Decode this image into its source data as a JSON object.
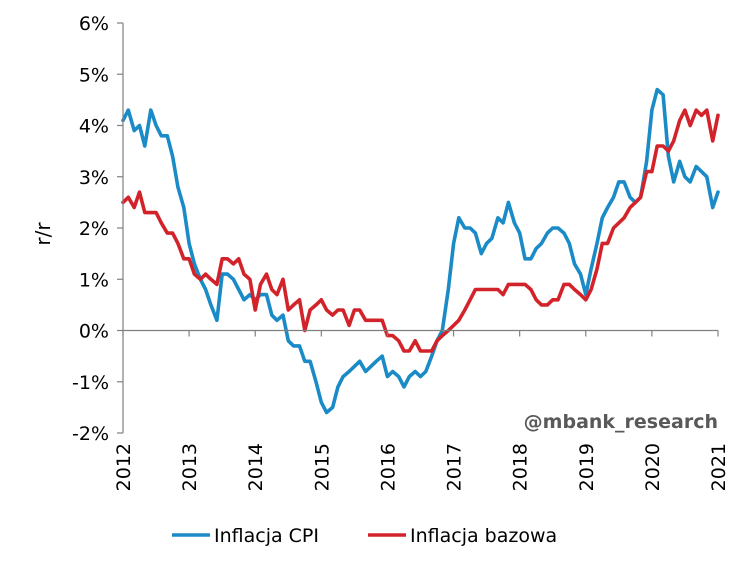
{
  "chart_data": {
    "type": "line",
    "ylabel": "r/r",
    "xlabel": "",
    "ylim": [
      -2,
      6
    ],
    "xlim": [
      2012,
      2021
    ],
    "y_ticks": [
      -2,
      -1,
      0,
      1,
      2,
      3,
      4,
      5,
      6
    ],
    "y_tick_labels": [
      "-2%",
      "-1%",
      "0%",
      "1%",
      "2%",
      "3%",
      "4%",
      "5%",
      "6%"
    ],
    "x_ticks": [
      2012,
      2013,
      2014,
      2015,
      2016,
      2017,
      2018,
      2019,
      2020,
      2021
    ],
    "x_tick_labels": [
      "2012",
      "2013",
      "2014",
      "2015",
      "2016",
      "2017",
      "2018",
      "2019",
      "2020",
      "2021"
    ],
    "grid": false,
    "legend_position": "bottom",
    "watermark": "@mbank_research",
    "series": [
      {
        "name": "Inflacja CPI",
        "color": "#1a8bc6",
        "points": [
          [
            2012.0,
            4.1
          ],
          [
            2012.08,
            4.3
          ],
          [
            2012.17,
            3.9
          ],
          [
            2012.25,
            4.0
          ],
          [
            2012.33,
            3.6
          ],
          [
            2012.42,
            4.3
          ],
          [
            2012.5,
            4.0
          ],
          [
            2012.58,
            3.8
          ],
          [
            2012.67,
            3.8
          ],
          [
            2012.75,
            3.4
          ],
          [
            2012.83,
            2.8
          ],
          [
            2012.92,
            2.4
          ],
          [
            2013.0,
            1.7
          ],
          [
            2013.08,
            1.3
          ],
          [
            2013.17,
            1.0
          ],
          [
            2013.25,
            0.8
          ],
          [
            2013.33,
            0.5
          ],
          [
            2013.42,
            0.2
          ],
          [
            2013.5,
            1.1
          ],
          [
            2013.58,
            1.1
          ],
          [
            2013.67,
            1.0
          ],
          [
            2013.75,
            0.8
          ],
          [
            2013.83,
            0.6
          ],
          [
            2013.92,
            0.7
          ],
          [
            2014.0,
            0.6
          ],
          [
            2014.08,
            0.7
          ],
          [
            2014.17,
            0.7
          ],
          [
            2014.25,
            0.3
          ],
          [
            2014.33,
            0.2
          ],
          [
            2014.42,
            0.3
          ],
          [
            2014.5,
            -0.2
          ],
          [
            2014.58,
            -0.3
          ],
          [
            2014.67,
            -0.3
          ],
          [
            2014.75,
            -0.6
          ],
          [
            2014.83,
            -0.6
          ],
          [
            2014.92,
            -1.0
          ],
          [
            2015.0,
            -1.4
          ],
          [
            2015.08,
            -1.6
          ],
          [
            2015.17,
            -1.5
          ],
          [
            2015.25,
            -1.1
          ],
          [
            2015.33,
            -0.9
          ],
          [
            2015.42,
            -0.8
          ],
          [
            2015.5,
            -0.7
          ],
          [
            2015.58,
            -0.6
          ],
          [
            2015.67,
            -0.8
          ],
          [
            2015.75,
            -0.7
          ],
          [
            2015.83,
            -0.6
          ],
          [
            2015.92,
            -0.5
          ],
          [
            2016.0,
            -0.9
          ],
          [
            2016.08,
            -0.8
          ],
          [
            2016.17,
            -0.9
          ],
          [
            2016.25,
            -1.1
          ],
          [
            2016.33,
            -0.9
          ],
          [
            2016.42,
            -0.8
          ],
          [
            2016.5,
            -0.9
          ],
          [
            2016.58,
            -0.8
          ],
          [
            2016.67,
            -0.5
          ],
          [
            2016.75,
            -0.2
          ],
          [
            2016.83,
            0.0
          ],
          [
            2016.92,
            0.8
          ],
          [
            2017.0,
            1.7
          ],
          [
            2017.08,
            2.2
          ],
          [
            2017.17,
            2.0
          ],
          [
            2017.25,
            2.0
          ],
          [
            2017.33,
            1.9
          ],
          [
            2017.42,
            1.5
          ],
          [
            2017.5,
            1.7
          ],
          [
            2017.58,
            1.8
          ],
          [
            2017.67,
            2.2
          ],
          [
            2017.75,
            2.1
          ],
          [
            2017.83,
            2.5
          ],
          [
            2017.92,
            2.1
          ],
          [
            2018.0,
            1.9
          ],
          [
            2018.08,
            1.4
          ],
          [
            2018.17,
            1.4
          ],
          [
            2018.25,
            1.6
          ],
          [
            2018.33,
            1.7
          ],
          [
            2018.42,
            1.9
          ],
          [
            2018.5,
            2.0
          ],
          [
            2018.58,
            2.0
          ],
          [
            2018.67,
            1.9
          ],
          [
            2018.75,
            1.7
          ],
          [
            2018.83,
            1.3
          ],
          [
            2018.92,
            1.1
          ],
          [
            2019.0,
            0.7
          ],
          [
            2019.08,
            1.2
          ],
          [
            2019.17,
            1.7
          ],
          [
            2019.25,
            2.2
          ],
          [
            2019.33,
            2.4
          ],
          [
            2019.42,
            2.6
          ],
          [
            2019.5,
            2.9
          ],
          [
            2019.58,
            2.9
          ],
          [
            2019.67,
            2.6
          ],
          [
            2019.75,
            2.5
          ],
          [
            2019.83,
            2.6
          ],
          [
            2019.92,
            3.3
          ],
          [
            2020.0,
            4.3
          ],
          [
            2020.08,
            4.7
          ],
          [
            2020.17,
            4.6
          ],
          [
            2020.25,
            3.4
          ],
          [
            2020.33,
            2.9
          ],
          [
            2020.42,
            3.3
          ],
          [
            2020.5,
            3.0
          ],
          [
            2020.58,
            2.9
          ],
          [
            2020.67,
            3.2
          ],
          [
            2020.75,
            3.1
          ],
          [
            2020.83,
            3.0
          ],
          [
            2020.92,
            2.4
          ],
          [
            2021.0,
            2.7
          ]
        ]
      },
      {
        "name": "Inflacja bazowa",
        "color": "#d3232a",
        "points": [
          [
            2012.0,
            2.5
          ],
          [
            2012.08,
            2.6
          ],
          [
            2012.17,
            2.4
          ],
          [
            2012.25,
            2.7
          ],
          [
            2012.33,
            2.3
          ],
          [
            2012.42,
            2.3
          ],
          [
            2012.5,
            2.3
          ],
          [
            2012.58,
            2.1
          ],
          [
            2012.67,
            1.9
          ],
          [
            2012.75,
            1.9
          ],
          [
            2012.83,
            1.7
          ],
          [
            2012.92,
            1.4
          ],
          [
            2013.0,
            1.4
          ],
          [
            2013.08,
            1.1
          ],
          [
            2013.17,
            1.0
          ],
          [
            2013.25,
            1.1
          ],
          [
            2013.33,
            1.0
          ],
          [
            2013.42,
            0.9
          ],
          [
            2013.5,
            1.4
          ],
          [
            2013.58,
            1.4
          ],
          [
            2013.67,
            1.3
          ],
          [
            2013.75,
            1.4
          ],
          [
            2013.83,
            1.1
          ],
          [
            2013.92,
            1.0
          ],
          [
            2014.0,
            0.4
          ],
          [
            2014.08,
            0.9
          ],
          [
            2014.17,
            1.1
          ],
          [
            2014.25,
            0.8
          ],
          [
            2014.33,
            0.7
          ],
          [
            2014.42,
            1.0
          ],
          [
            2014.5,
            0.4
          ],
          [
            2014.58,
            0.5
          ],
          [
            2014.67,
            0.6
          ],
          [
            2014.75,
            0.0
          ],
          [
            2014.83,
            0.4
          ],
          [
            2014.92,
            0.5
          ],
          [
            2015.0,
            0.6
          ],
          [
            2015.08,
            0.4
          ],
          [
            2015.17,
            0.3
          ],
          [
            2015.25,
            0.4
          ],
          [
            2015.33,
            0.4
          ],
          [
            2015.42,
            0.1
          ],
          [
            2015.5,
            0.4
          ],
          [
            2015.58,
            0.4
          ],
          [
            2015.67,
            0.2
          ],
          [
            2015.75,
            0.2
          ],
          [
            2015.83,
            0.2
          ],
          [
            2015.92,
            0.2
          ],
          [
            2016.0,
            -0.1
          ],
          [
            2016.08,
            -0.1
          ],
          [
            2016.17,
            -0.2
          ],
          [
            2016.25,
            -0.4
          ],
          [
            2016.33,
            -0.4
          ],
          [
            2016.42,
            -0.2
          ],
          [
            2016.5,
            -0.4
          ],
          [
            2016.58,
            -0.4
          ],
          [
            2016.67,
            -0.4
          ],
          [
            2016.75,
            -0.2
          ],
          [
            2016.83,
            -0.1
          ],
          [
            2016.92,
            0.0
          ],
          [
            2017.0,
            0.1
          ],
          [
            2017.08,
            0.2
          ],
          [
            2017.17,
            0.4
          ],
          [
            2017.25,
            0.6
          ],
          [
            2017.33,
            0.8
          ],
          [
            2017.42,
            0.8
          ],
          [
            2017.5,
            0.8
          ],
          [
            2017.58,
            0.8
          ],
          [
            2017.67,
            0.8
          ],
          [
            2017.75,
            0.7
          ],
          [
            2017.83,
            0.9
          ],
          [
            2017.92,
            0.9
          ],
          [
            2018.0,
            0.9
          ],
          [
            2018.08,
            0.9
          ],
          [
            2018.17,
            0.8
          ],
          [
            2018.25,
            0.6
          ],
          [
            2018.33,
            0.5
          ],
          [
            2018.42,
            0.5
          ],
          [
            2018.5,
            0.6
          ],
          [
            2018.58,
            0.6
          ],
          [
            2018.67,
            0.9
          ],
          [
            2018.75,
            0.9
          ],
          [
            2018.83,
            0.8
          ],
          [
            2018.92,
            0.7
          ],
          [
            2019.0,
            0.6
          ],
          [
            2019.08,
            0.8
          ],
          [
            2019.17,
            1.2
          ],
          [
            2019.25,
            1.7
          ],
          [
            2019.33,
            1.7
          ],
          [
            2019.42,
            2.0
          ],
          [
            2019.5,
            2.1
          ],
          [
            2019.58,
            2.2
          ],
          [
            2019.67,
            2.4
          ],
          [
            2019.75,
            2.5
          ],
          [
            2019.83,
            2.6
          ],
          [
            2019.92,
            3.1
          ],
          [
            2020.0,
            3.1
          ],
          [
            2020.08,
            3.6
          ],
          [
            2020.17,
            3.6
          ],
          [
            2020.25,
            3.5
          ],
          [
            2020.33,
            3.7
          ],
          [
            2020.42,
            4.1
          ],
          [
            2020.5,
            4.3
          ],
          [
            2020.58,
            4.0
          ],
          [
            2020.67,
            4.3
          ],
          [
            2020.75,
            4.2
          ],
          [
            2020.83,
            4.3
          ],
          [
            2020.92,
            3.7
          ],
          [
            2021.0,
            4.2
          ]
        ]
      }
    ]
  }
}
